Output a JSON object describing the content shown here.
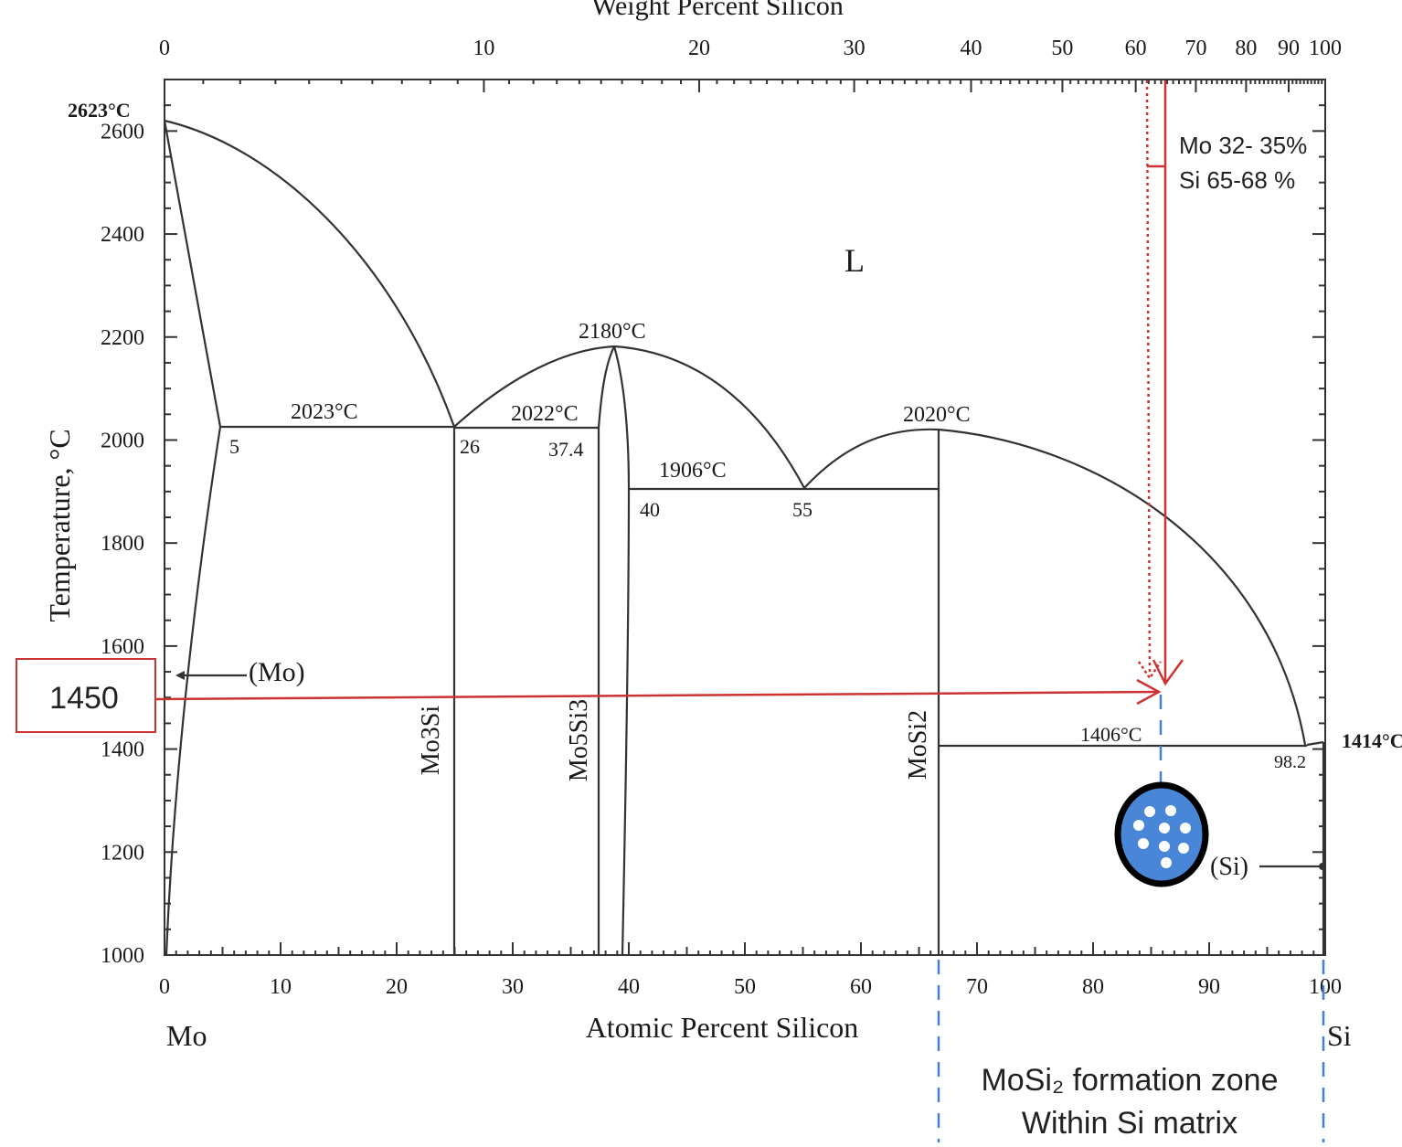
{
  "axes": {
    "top_title": "Weight Percent Silicon",
    "bottom_title": "Atomic Percent Silicon",
    "left_title": "Temperature, °C",
    "left_element": "Mo",
    "right_element": "Si",
    "x_ticks": [
      "0",
      "10",
      "20",
      "30",
      "40",
      "50",
      "60",
      "70",
      "80",
      "90",
      "100"
    ],
    "top_ticks": [
      "0",
      "10",
      "20",
      "30",
      "40",
      "50",
      "60",
      "70",
      "80",
      "90",
      "100"
    ],
    "y_ticks": [
      "1000",
      "1200",
      "1400",
      "1600",
      "1800",
      "2000",
      "2200",
      "2400",
      "2600"
    ]
  },
  "labels": {
    "mo_melt": "2623°C",
    "si_melt": "1414°C",
    "liquid": "L",
    "eut1_temp": "2023°C",
    "eut1_left": "5",
    "eut1_right": "26",
    "peri_temp": "2022°C",
    "peri_comp": "37.4",
    "cong_temp": "2180°C",
    "eut2_temp": "1906°C",
    "eut2_left": "40",
    "eut2_right": "55",
    "mosi2_melt": "2020°C",
    "eut3_temp": "1406°C",
    "eut3_comp": "98.2",
    "mo_phase": "(Mo)",
    "si_phase": "(Si)",
    "mo3si": "Mo3Si",
    "mo5si3": "Mo5Si3",
    "mosi2": "MoSi2"
  },
  "annotations": {
    "temp_box": "1450",
    "comp_line1": "Mo 32- 35%",
    "comp_line2": "Si 65-68 %",
    "zone_line1": "MoSi₂ formation zone",
    "zone_line2": "Within Si matrix"
  },
  "colors": {
    "annotation_red": "#cc3333",
    "zone_blue": "#4a7fd0",
    "particle_fill": "#4a86d8"
  }
}
